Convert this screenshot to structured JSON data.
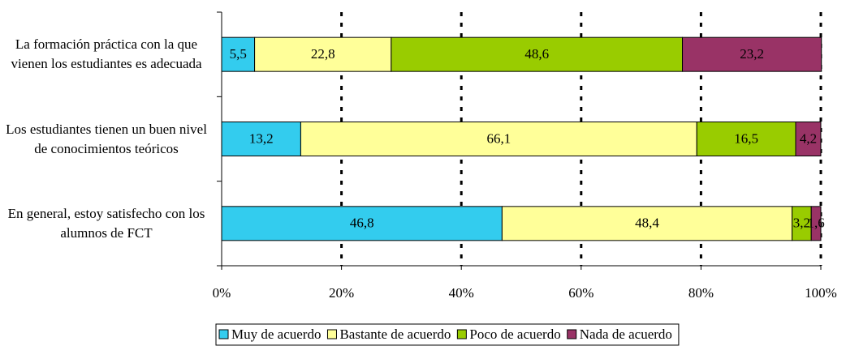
{
  "chart_data": {
    "type": "stacked_barh",
    "categories": [
      "La formación práctica con la que vienen los estudiantes es adecuada",
      "Los estudiantes tienen un buen nivel de conocimientos teóricos",
      "En general, estoy satisfecho con los alumnos de FCT"
    ],
    "series": [
      {
        "name": "Muy de acuerdo",
        "color": "#33CCEE",
        "values": [
          5.5,
          13.2,
          46.8
        ],
        "value_labels": [
          "5,5",
          "13,2",
          "46,8"
        ]
      },
      {
        "name": "Bastante de acuerdo",
        "color": "#FFFF99",
        "values": [
          22.8,
          66.1,
          48.4
        ],
        "value_labels": [
          "22,8",
          "66,1",
          "48,4"
        ]
      },
      {
        "name": "Poco de acuerdo",
        "color": "#99CC00",
        "values": [
          48.6,
          16.5,
          3.2
        ],
        "value_labels": [
          "48,6",
          "16,5",
          "3,2"
        ]
      },
      {
        "name": "Nada de acuerdo",
        "color": "#993366",
        "values": [
          23.2,
          4.2,
          1.6
        ],
        "value_labels": [
          "23,2",
          "4,2",
          "1,6"
        ]
      }
    ],
    "xlim": [
      0,
      100
    ],
    "xticks": [
      {
        "value": 0,
        "label": "0%"
      },
      {
        "value": 20,
        "label": "20%"
      },
      {
        "value": 40,
        "label": "40%"
      },
      {
        "value": 60,
        "label": "60%"
      },
      {
        "value": 80,
        "label": "80%"
      },
      {
        "value": 100,
        "label": "100%"
      }
    ],
    "grid": true,
    "legend": "bottom"
  }
}
